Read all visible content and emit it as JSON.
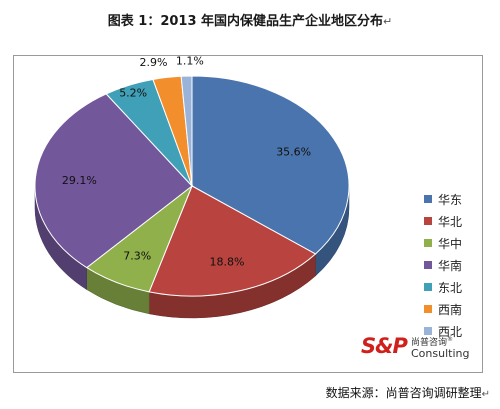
{
  "header": {
    "title": "图表 1：2013 年国内保健品生产企业地区分布",
    "return_mark": "↵"
  },
  "chart_data": {
    "type": "pie",
    "style": "3d",
    "title": "图表 1：2013 年国内保健品生产企业地区分布",
    "categories": [
      "华东",
      "华北",
      "华中",
      "华南",
      "东北",
      "西南",
      "西北"
    ],
    "values": [
      35.6,
      18.8,
      7.3,
      29.1,
      5.2,
      2.9,
      1.1
    ],
    "labels": [
      "35.6%",
      "18.8%",
      "7.3%",
      "29.1%",
      "5.2%",
      "2.9%",
      "1.1%"
    ],
    "colors": [
      "#4a74ad",
      "#b8433f",
      "#8fb04b",
      "#72579a",
      "#3fa0b8",
      "#f28e2b",
      "#9ab3d9"
    ],
    "legend_position": "right"
  },
  "logo": {
    "mark": "S&P",
    "chinese": "尚普咨询",
    "registered": "®",
    "english": "Consulting"
  },
  "source": {
    "text": "数据来源：尚普咨询调研整理",
    "return_mark": "↵"
  }
}
